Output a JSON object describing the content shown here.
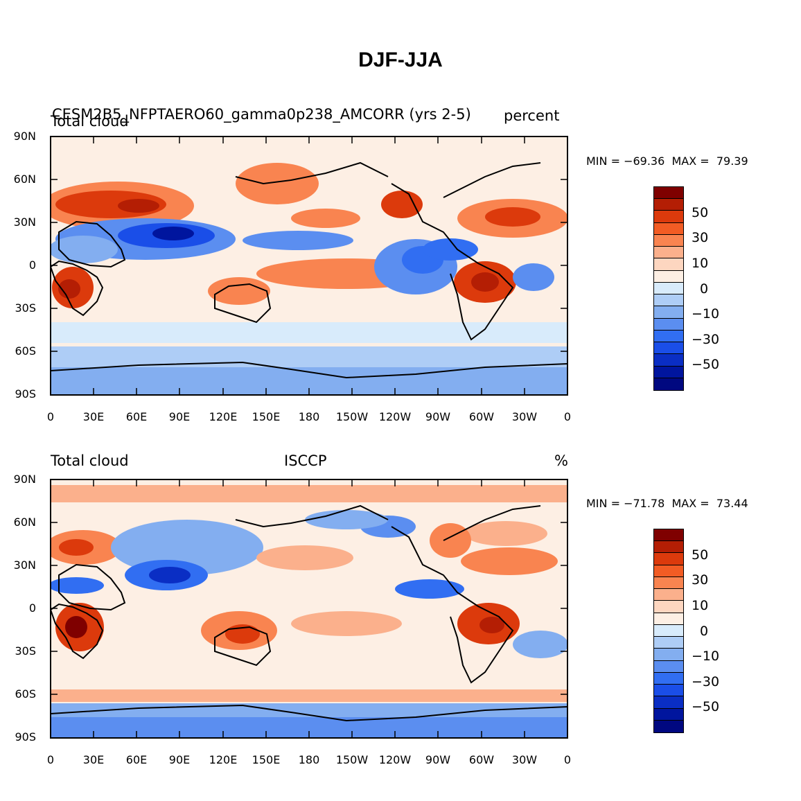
{
  "title": "DJF-JJA",
  "colors": {
    "levels": [
      "#7f0000",
      "#b41e04",
      "#dc3a0c",
      "#f25c24",
      "#f98450",
      "#fbb08c",
      "#fdd6c0",
      "#fdefe4",
      "#d8ebfb",
      "#aecdf6",
      "#83aef0",
      "#5b8ef0",
      "#316ef2",
      "#1a4ee8",
      "#0a2ec4",
      "#00159e",
      "#000880"
    ]
  },
  "x_ticks": [
    "0",
    "30E",
    "60E",
    "90E",
    "120E",
    "150E",
    "180",
    "150W",
    "120W",
    "90W",
    "60W",
    "30W",
    "0"
  ],
  "y_ticks": [
    "90N",
    "60N",
    "30N",
    "0",
    "30S",
    "60S",
    "90S"
  ],
  "colorbar_labels": [
    "50",
    "30",
    "10",
    "0",
    "−10",
    "−30",
    "−50"
  ],
  "panels": [
    {
      "left_label": "Total cloud",
      "center_label": "CESM2B5_NFPTAERO60_gamma0p238_AMCORR (yrs 2-5)",
      "right_label": "percent",
      "min_label": "MIN = −69.36",
      "max_label": "MAX =  79.39"
    },
    {
      "left_label": "Total cloud",
      "center_label": "ISCCP",
      "right_label": "%",
      "min_label": "MIN = −71.78",
      "max_label": "MAX =  73.44"
    }
  ]
}
